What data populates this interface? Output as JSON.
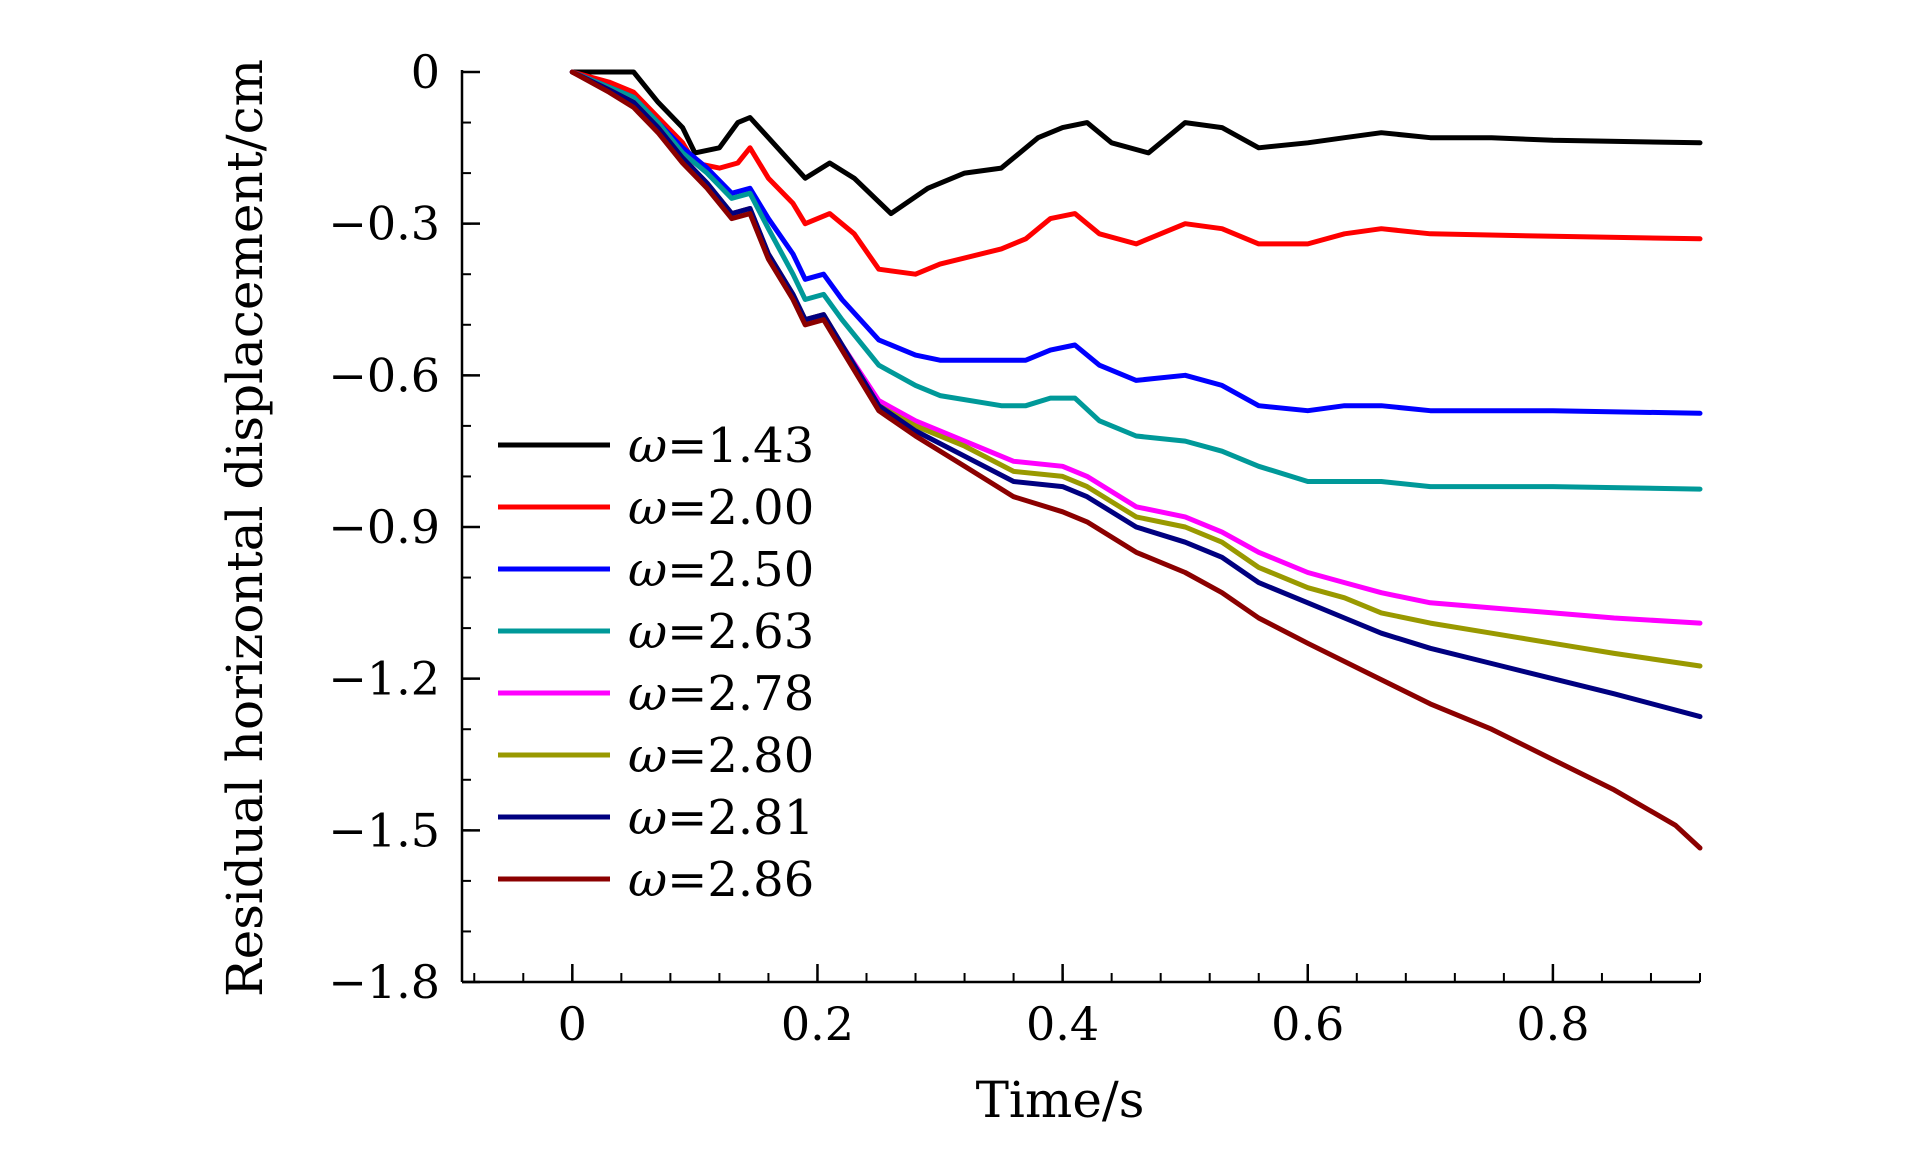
{
  "chart_data": {
    "type": "line",
    "title": "",
    "xlabel": "Time/s",
    "ylabel": "Residual horizontal displacement/cm",
    "xlim": [
      -0.09,
      0.92
    ],
    "ylim": [
      -1.8,
      0
    ],
    "x_ticks": [
      0,
      0.2,
      0.4,
      0.6,
      0.8
    ],
    "x_tick_labels": [
      "0",
      "0.2",
      "0.4",
      "0.6",
      "0.8"
    ],
    "x_minor_step": 0.04,
    "y_ticks": [
      0,
      -0.3,
      -0.6,
      -0.9,
      -1.2,
      -1.5,
      -1.8
    ],
    "y_tick_labels": [
      "0",
      "−0.3",
      "−0.6",
      "−0.9",
      "−1.2",
      "−1.5",
      "−1.8"
    ],
    "y_minor_step": 0.1,
    "grid": false,
    "legend_position": "left-middle",
    "series": [
      {
        "name": "ω=1.43",
        "name_symbol": "ω",
        "name_value": "=1.43",
        "color": "#000000",
        "points": [
          [
            0,
            0
          ],
          [
            0.02,
            0
          ],
          [
            0.05,
            0
          ],
          [
            0.07,
            -0.06
          ],
          [
            0.09,
            -0.11
          ],
          [
            0.1,
            -0.16
          ],
          [
            0.12,
            -0.15
          ],
          [
            0.135,
            -0.1
          ],
          [
            0.145,
            -0.09
          ],
          [
            0.16,
            -0.13
          ],
          [
            0.19,
            -0.21
          ],
          [
            0.21,
            -0.18
          ],
          [
            0.23,
            -0.21
          ],
          [
            0.26,
            -0.28
          ],
          [
            0.29,
            -0.23
          ],
          [
            0.32,
            -0.2
          ],
          [
            0.35,
            -0.19
          ],
          [
            0.38,
            -0.13
          ],
          [
            0.4,
            -0.11
          ],
          [
            0.42,
            -0.1
          ],
          [
            0.44,
            -0.14
          ],
          [
            0.47,
            -0.16
          ],
          [
            0.5,
            -0.1
          ],
          [
            0.53,
            -0.11
          ],
          [
            0.56,
            -0.15
          ],
          [
            0.6,
            -0.14
          ],
          [
            0.63,
            -0.13
          ],
          [
            0.66,
            -0.12
          ],
          [
            0.7,
            -0.13
          ],
          [
            0.75,
            -0.13
          ],
          [
            0.8,
            -0.135
          ],
          [
            0.92,
            -0.14
          ]
        ]
      },
      {
        "name": "ω=2.00",
        "name_symbol": "ω",
        "name_value": "=2.00",
        "color": "#ff0000",
        "points": [
          [
            0,
            0
          ],
          [
            0.03,
            -0.02
          ],
          [
            0.05,
            -0.04
          ],
          [
            0.07,
            -0.09
          ],
          [
            0.09,
            -0.14
          ],
          [
            0.1,
            -0.18
          ],
          [
            0.12,
            -0.19
          ],
          [
            0.135,
            -0.18
          ],
          [
            0.145,
            -0.15
          ],
          [
            0.16,
            -0.21
          ],
          [
            0.18,
            -0.26
          ],
          [
            0.19,
            -0.3
          ],
          [
            0.21,
            -0.28
          ],
          [
            0.23,
            -0.32
          ],
          [
            0.25,
            -0.39
          ],
          [
            0.28,
            -0.4
          ],
          [
            0.3,
            -0.38
          ],
          [
            0.35,
            -0.35
          ],
          [
            0.37,
            -0.33
          ],
          [
            0.39,
            -0.29
          ],
          [
            0.41,
            -0.28
          ],
          [
            0.43,
            -0.32
          ],
          [
            0.46,
            -0.34
          ],
          [
            0.5,
            -0.3
          ],
          [
            0.53,
            -0.31
          ],
          [
            0.56,
            -0.34
          ],
          [
            0.6,
            -0.34
          ],
          [
            0.63,
            -0.32
          ],
          [
            0.66,
            -0.31
          ],
          [
            0.7,
            -0.32
          ],
          [
            0.8,
            -0.325
          ],
          [
            0.92,
            -0.33
          ]
        ]
      },
      {
        "name": "ω=2.50",
        "name_symbol": "ω",
        "name_value": "=2.50",
        "color": "#0000ff",
        "points": [
          [
            0,
            0
          ],
          [
            0.03,
            -0.03
          ],
          [
            0.05,
            -0.05
          ],
          [
            0.07,
            -0.1
          ],
          [
            0.09,
            -0.15
          ],
          [
            0.11,
            -0.19
          ],
          [
            0.13,
            -0.24
          ],
          [
            0.145,
            -0.23
          ],
          [
            0.16,
            -0.29
          ],
          [
            0.18,
            -0.36
          ],
          [
            0.19,
            -0.41
          ],
          [
            0.205,
            -0.4
          ],
          [
            0.22,
            -0.45
          ],
          [
            0.25,
            -0.53
          ],
          [
            0.28,
            -0.56
          ],
          [
            0.3,
            -0.57
          ],
          [
            0.35,
            -0.57
          ],
          [
            0.37,
            -0.57
          ],
          [
            0.39,
            -0.55
          ],
          [
            0.41,
            -0.54
          ],
          [
            0.43,
            -0.58
          ],
          [
            0.46,
            -0.61
          ],
          [
            0.5,
            -0.6
          ],
          [
            0.53,
            -0.62
          ],
          [
            0.56,
            -0.66
          ],
          [
            0.6,
            -0.67
          ],
          [
            0.63,
            -0.66
          ],
          [
            0.66,
            -0.66
          ],
          [
            0.7,
            -0.67
          ],
          [
            0.8,
            -0.67
          ],
          [
            0.92,
            -0.675
          ]
        ]
      },
      {
        "name": "ω=2.63",
        "name_symbol": "ω",
        "name_value": "=2.63",
        "color": "#009999",
        "points": [
          [
            0,
            0
          ],
          [
            0.03,
            -0.03
          ],
          [
            0.05,
            -0.05
          ],
          [
            0.07,
            -0.1
          ],
          [
            0.09,
            -0.16
          ],
          [
            0.11,
            -0.2
          ],
          [
            0.13,
            -0.25
          ],
          [
            0.145,
            -0.24
          ],
          [
            0.16,
            -0.31
          ],
          [
            0.18,
            -0.4
          ],
          [
            0.19,
            -0.45
          ],
          [
            0.205,
            -0.44
          ],
          [
            0.22,
            -0.49
          ],
          [
            0.25,
            -0.58
          ],
          [
            0.28,
            -0.62
          ],
          [
            0.3,
            -0.64
          ],
          [
            0.35,
            -0.66
          ],
          [
            0.37,
            -0.66
          ],
          [
            0.39,
            -0.645
          ],
          [
            0.41,
            -0.645
          ],
          [
            0.43,
            -0.69
          ],
          [
            0.46,
            -0.72
          ],
          [
            0.5,
            -0.73
          ],
          [
            0.53,
            -0.75
          ],
          [
            0.56,
            -0.78
          ],
          [
            0.6,
            -0.81
          ],
          [
            0.63,
            -0.81
          ],
          [
            0.66,
            -0.81
          ],
          [
            0.7,
            -0.82
          ],
          [
            0.8,
            -0.82
          ],
          [
            0.92,
            -0.825
          ]
        ]
      },
      {
        "name": "ω=2.78",
        "name_symbol": "ω",
        "name_value": "=2.78",
        "color": "#ff00ff",
        "points": [
          [
            0,
            0
          ],
          [
            0.03,
            -0.035
          ],
          [
            0.05,
            -0.06
          ],
          [
            0.07,
            -0.11
          ],
          [
            0.09,
            -0.17
          ],
          [
            0.11,
            -0.22
          ],
          [
            0.13,
            -0.28
          ],
          [
            0.145,
            -0.27
          ],
          [
            0.16,
            -0.36
          ],
          [
            0.18,
            -0.44
          ],
          [
            0.19,
            -0.49
          ],
          [
            0.205,
            -0.48
          ],
          [
            0.22,
            -0.54
          ],
          [
            0.25,
            -0.65
          ],
          [
            0.28,
            -0.69
          ],
          [
            0.32,
            -0.73
          ],
          [
            0.36,
            -0.77
          ],
          [
            0.4,
            -0.78
          ],
          [
            0.42,
            -0.8
          ],
          [
            0.46,
            -0.86
          ],
          [
            0.5,
            -0.88
          ],
          [
            0.53,
            -0.91
          ],
          [
            0.56,
            -0.95
          ],
          [
            0.6,
            -0.99
          ],
          [
            0.63,
            -1.01
          ],
          [
            0.66,
            -1.03
          ],
          [
            0.7,
            -1.05
          ],
          [
            0.75,
            -1.06
          ],
          [
            0.8,
            -1.07
          ],
          [
            0.85,
            -1.08
          ],
          [
            0.92,
            -1.09
          ]
        ]
      },
      {
        "name": "ω=2.80",
        "name_symbol": "ω",
        "name_value": "=2.80",
        "color": "#999900",
        "points": [
          [
            0,
            0
          ],
          [
            0.03,
            -0.035
          ],
          [
            0.05,
            -0.06
          ],
          [
            0.07,
            -0.11
          ],
          [
            0.09,
            -0.17
          ],
          [
            0.11,
            -0.22
          ],
          [
            0.13,
            -0.28
          ],
          [
            0.145,
            -0.27
          ],
          [
            0.16,
            -0.36
          ],
          [
            0.18,
            -0.44
          ],
          [
            0.19,
            -0.49
          ],
          [
            0.205,
            -0.48
          ],
          [
            0.22,
            -0.54
          ],
          [
            0.25,
            -0.66
          ],
          [
            0.28,
            -0.7
          ],
          [
            0.32,
            -0.74
          ],
          [
            0.36,
            -0.79
          ],
          [
            0.4,
            -0.8
          ],
          [
            0.42,
            -0.82
          ],
          [
            0.46,
            -0.88
          ],
          [
            0.5,
            -0.9
          ],
          [
            0.53,
            -0.93
          ],
          [
            0.56,
            -0.98
          ],
          [
            0.6,
            -1.02
          ],
          [
            0.63,
            -1.04
          ],
          [
            0.66,
            -1.07
          ],
          [
            0.7,
            -1.09
          ],
          [
            0.75,
            -1.11
          ],
          [
            0.8,
            -1.13
          ],
          [
            0.85,
            -1.15
          ],
          [
            0.92,
            -1.175
          ]
        ]
      },
      {
        "name": "ω=2.81",
        "name_symbol": "ω",
        "name_value": "=2.81",
        "color": "#000080",
        "points": [
          [
            0,
            0
          ],
          [
            0.03,
            -0.035
          ],
          [
            0.05,
            -0.06
          ],
          [
            0.07,
            -0.11
          ],
          [
            0.09,
            -0.17
          ],
          [
            0.11,
            -0.22
          ],
          [
            0.13,
            -0.28
          ],
          [
            0.145,
            -0.27
          ],
          [
            0.16,
            -0.36
          ],
          [
            0.18,
            -0.44
          ],
          [
            0.19,
            -0.49
          ],
          [
            0.205,
            -0.48
          ],
          [
            0.22,
            -0.54
          ],
          [
            0.25,
            -0.66
          ],
          [
            0.28,
            -0.71
          ],
          [
            0.32,
            -0.76
          ],
          [
            0.36,
            -0.81
          ],
          [
            0.4,
            -0.82
          ],
          [
            0.42,
            -0.84
          ],
          [
            0.46,
            -0.9
          ],
          [
            0.5,
            -0.93
          ],
          [
            0.53,
            -0.96
          ],
          [
            0.56,
            -1.01
          ],
          [
            0.6,
            -1.05
          ],
          [
            0.63,
            -1.08
          ],
          [
            0.66,
            -1.11
          ],
          [
            0.7,
            -1.14
          ],
          [
            0.75,
            -1.17
          ],
          [
            0.8,
            -1.2
          ],
          [
            0.85,
            -1.23
          ],
          [
            0.92,
            -1.275
          ]
        ]
      },
      {
        "name": "ω=2.86",
        "name_symbol": "ω",
        "name_value": "=2.86",
        "color": "#8b0000",
        "points": [
          [
            0,
            0
          ],
          [
            0.03,
            -0.04
          ],
          [
            0.05,
            -0.07
          ],
          [
            0.07,
            -0.12
          ],
          [
            0.09,
            -0.18
          ],
          [
            0.11,
            -0.23
          ],
          [
            0.13,
            -0.29
          ],
          [
            0.145,
            -0.28
          ],
          [
            0.16,
            -0.37
          ],
          [
            0.18,
            -0.45
          ],
          [
            0.19,
            -0.5
          ],
          [
            0.205,
            -0.49
          ],
          [
            0.22,
            -0.55
          ],
          [
            0.25,
            -0.67
          ],
          [
            0.28,
            -0.72
          ],
          [
            0.32,
            -0.78
          ],
          [
            0.36,
            -0.84
          ],
          [
            0.4,
            -0.87
          ],
          [
            0.42,
            -0.89
          ],
          [
            0.46,
            -0.95
          ],
          [
            0.5,
            -0.99
          ],
          [
            0.53,
            -1.03
          ],
          [
            0.56,
            -1.08
          ],
          [
            0.6,
            -1.13
          ],
          [
            0.65,
            -1.19
          ],
          [
            0.7,
            -1.25
          ],
          [
            0.75,
            -1.3
          ],
          [
            0.8,
            -1.36
          ],
          [
            0.85,
            -1.42
          ],
          [
            0.9,
            -1.49
          ],
          [
            0.92,
            -1.535
          ]
        ]
      }
    ]
  }
}
